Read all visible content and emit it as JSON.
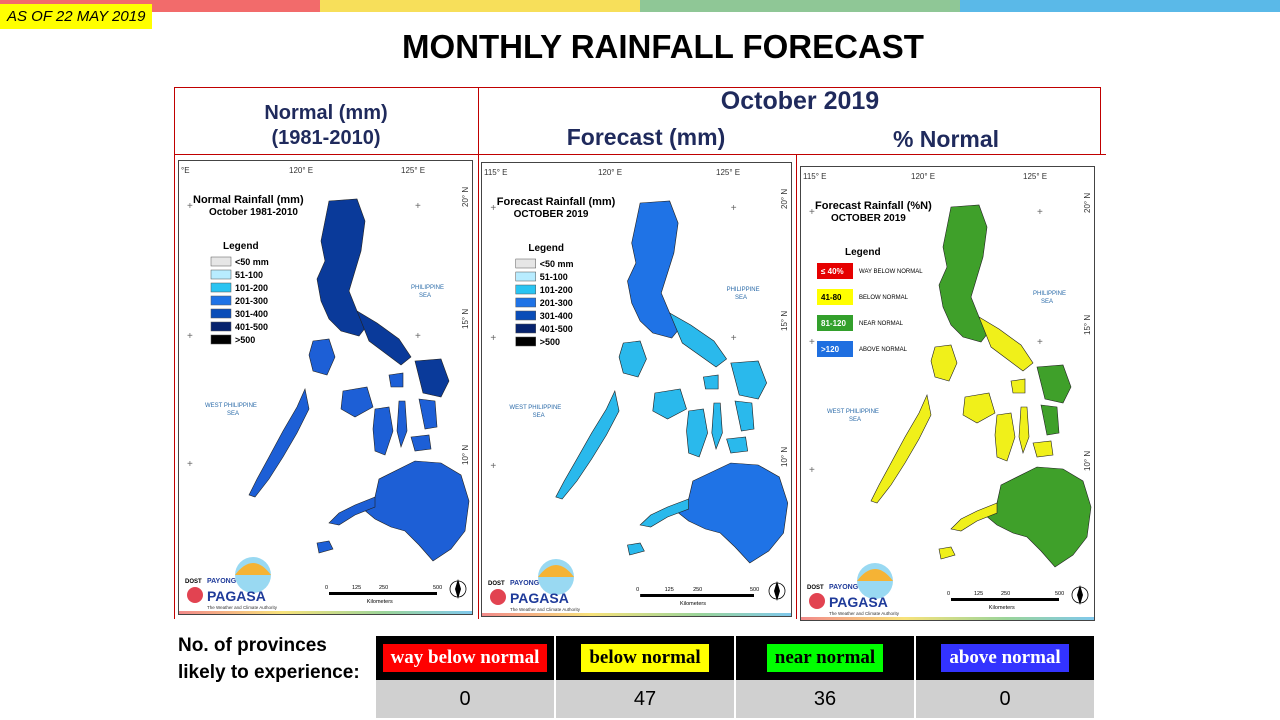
{
  "header": {
    "as_of": "AS OF 22 MAY 2019",
    "title": "MONTHLY RAINFALL FORECAST",
    "bar_colors": [
      "#f26b6b",
      "#f7df5a",
      "#8fc796",
      "#5ab9e8"
    ]
  },
  "columns": {
    "normal_title_1": "Normal (mm)",
    "normal_title_2": "(1981-2010)",
    "month": "October 2019",
    "forecast_title": "Forecast (mm)",
    "percent_title": "% Normal"
  },
  "maps": [
    {
      "coords": [
        "°E",
        "120° E",
        "125° E",
        "20° N",
        "15° N",
        "10° N"
      ],
      "title_1": "Normal Rainfall (mm)",
      "title_2": "October 1981-2010",
      "legend_title": "Legend",
      "legend": [
        {
          "label": "<50 mm",
          "color": "#e6e6e6"
        },
        {
          "label": "51-100",
          "color": "#b8ecff"
        },
        {
          "label": "101-200",
          "color": "#29c4f2"
        },
        {
          "label": "201-300",
          "color": "#1f73e6"
        },
        {
          "label": "301-400",
          "color": "#0a4db8"
        },
        {
          "label": "401-500",
          "color": "#07236e"
        },
        {
          "label": ">500",
          "color": "#000000"
        }
      ],
      "sea_east": [
        "PHILIPPINE",
        "SEA"
      ],
      "sea_west": [
        "WEST PHILIPPINE",
        "SEA"
      ],
      "scale": [
        "0",
        "125",
        "250",
        "500"
      ],
      "scale_unit": "Kilometers",
      "logo": {
        "dost": "DOST",
        "payong": "PAYONG",
        "pagasa": "PAGASA",
        "tagline": "The Weather and Climate Authority"
      },
      "fill": "#1d5fd6",
      "fill_dark": "#0a3a9a"
    },
    {
      "coords": [
        "115° E",
        "120° E",
        "125° E",
        "20° N",
        "15° N",
        "10° N"
      ],
      "title_1": "Forecast Rainfall (mm)",
      "title_2": "OCTOBER 2019",
      "legend_title": "Legend",
      "legend": [
        {
          "label": "<50 mm",
          "color": "#e6e6e6"
        },
        {
          "label": "51-100",
          "color": "#b8ecff"
        },
        {
          "label": "101-200",
          "color": "#29c4f2"
        },
        {
          "label": "201-300",
          "color": "#1f73e6"
        },
        {
          "label": "301-400",
          "color": "#0a4db8"
        },
        {
          "label": "401-500",
          "color": "#07236e"
        },
        {
          "label": ">500",
          "color": "#000000"
        }
      ],
      "sea_east": [
        "PHILIPPINE",
        "SEA"
      ],
      "sea_west": [
        "WEST PHILIPPINE",
        "SEA"
      ],
      "scale": [
        "0",
        "125",
        "250",
        "500"
      ],
      "scale_unit": "Kilometers",
      "logo": {
        "dost": "DOST",
        "payong": "PAYONG",
        "pagasa": "PAGASA",
        "tagline": "The Weather and Climate Authority"
      },
      "fill": "#2ab9ec",
      "fill_dark": "#1f73e6"
    },
    {
      "coords": [
        "115° E",
        "120° E",
        "125° E",
        "20° N",
        "15° N",
        "10° N"
      ],
      "title_1": "Forecast Rainfall (%N)",
      "title_2": "OCTOBER 2019",
      "legend_title": "Legend",
      "legend": [
        {
          "swatch": "≤ 40%",
          "label": "WAY BELOW NORMAL",
          "color": "#e60000",
          "text": "#ffffff"
        },
        {
          "swatch": "41-80",
          "label": "BELOW NORMAL",
          "color": "#ffff00",
          "text": "#000000"
        },
        {
          "swatch": "81-120",
          "label": "NEAR NORMAL",
          "color": "#33a02c",
          "text": "#ffffff"
        },
        {
          "swatch": ">120",
          "label": "ABOVE NORMAL",
          "color": "#1f6fe0",
          "text": "#ffffff"
        }
      ],
      "sea_east": [
        "PHILIPPINE",
        "SEA"
      ],
      "sea_west": [
        "WEST PHILIPPINE",
        "SEA"
      ],
      "scale": [
        "0",
        "125",
        "250",
        "500"
      ],
      "scale_unit": "Kilometers",
      "logo": {
        "dost": "DOST",
        "payong": "PAYONG",
        "pagasa": "PAGASA",
        "tagline": "The Weather and Climate Authority"
      },
      "fill": "#f0f01a",
      "fill_dark": "#3fa02a"
    }
  ],
  "provinces": {
    "label": "No. of provinces likely to experience:",
    "categories": [
      {
        "name": "way below normal",
        "count": "0",
        "bg": "#ff0000",
        "fg": "#ffffff"
      },
      {
        "name": "below normal",
        "count": "47",
        "bg": "#ffff00",
        "fg": "#000000"
      },
      {
        "name": "near normal",
        "count": "36",
        "bg": "#00ff00",
        "fg": "#000000"
      },
      {
        "name": "above normal",
        "count": "0",
        "bg": "#3333ff",
        "fg": "#ffffff"
      }
    ]
  }
}
